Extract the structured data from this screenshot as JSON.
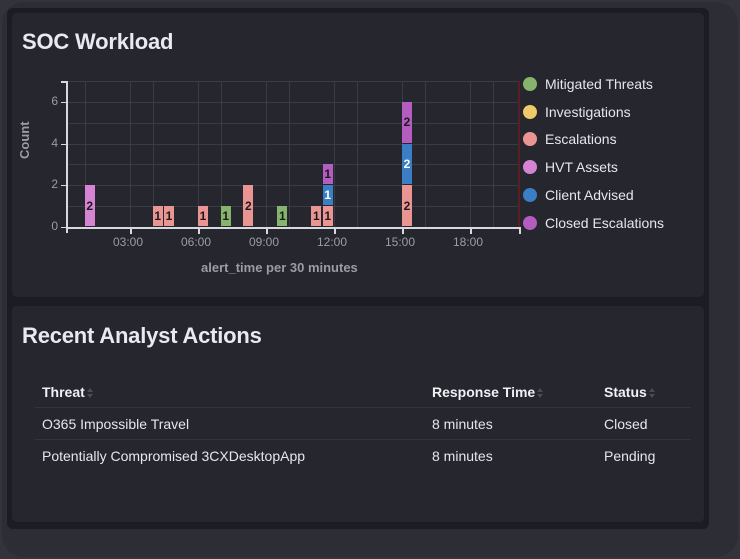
{
  "workload_panel": {
    "title": "SOC Workload"
  },
  "recent_panel": {
    "title": "Recent Analyst Actions",
    "columns": [
      {
        "label": "Threat",
        "sort_icon": "sort-icon"
      },
      {
        "label": "Response Time",
        "sort_icon": "sort-icon"
      },
      {
        "label": "Status",
        "sort_icon": "sort-icon"
      }
    ],
    "rows": [
      {
        "threat": "O365 Impossible Travel",
        "response_time": "8 minutes",
        "status": "Closed"
      },
      {
        "threat": "Potentially Compromised 3CXDesktopApp",
        "response_time": "8 minutes",
        "status": "Pending"
      }
    ]
  },
  "colors": {
    "Mitigated Threats": "#86b46d",
    "Investigations": "#f0c96a",
    "Escalations": "#eb9592",
    "HVT Assets": "#d584d2",
    "Client Advised": "#3a7fc6",
    "Closed Escalations": "#b45cc0"
  },
  "chart_data": {
    "type": "bar",
    "stacked": true,
    "title": "SOC Workload",
    "xlabel": "alert_time per 30 minutes",
    "ylabel": "Count",
    "ylim": [
      0,
      7
    ],
    "yticks": [
      "0",
      "2",
      "4",
      "6"
    ],
    "xticks": [
      "03:00",
      "06:00",
      "09:00",
      "12:00",
      "15:00",
      "18:00"
    ],
    "grid": true,
    "legend_position": "right",
    "legend": [
      "Mitigated Threats",
      "Investigations",
      "Escalations",
      "HVT Assets",
      "Client Advised",
      "Closed Escalations"
    ],
    "categories": [
      "01:00",
      "04:00",
      "04:30",
      "06:00",
      "07:00",
      "08:00",
      "09:30",
      "11:00",
      "11:30",
      "15:00"
    ],
    "series": [
      {
        "name": "Mitigated Threats",
        "values": [
          0,
          0,
          0,
          0,
          1,
          0,
          1,
          0,
          0,
          0
        ]
      },
      {
        "name": "Investigations",
        "values": [
          0,
          0,
          0,
          0,
          0,
          0,
          0,
          0,
          0,
          0
        ]
      },
      {
        "name": "Escalations",
        "values": [
          0,
          1,
          1,
          1,
          0,
          2,
          0,
          1,
          1,
          2
        ]
      },
      {
        "name": "HVT Assets",
        "values": [
          2,
          0,
          0,
          0,
          0,
          0,
          0,
          0,
          0,
          0
        ]
      },
      {
        "name": "Client Advised",
        "values": [
          0,
          0,
          0,
          0,
          0,
          0,
          0,
          0,
          1,
          2
        ]
      },
      {
        "name": "Closed Escalations",
        "values": [
          0,
          0,
          0,
          0,
          0,
          0,
          0,
          0,
          1,
          2
        ]
      }
    ]
  }
}
